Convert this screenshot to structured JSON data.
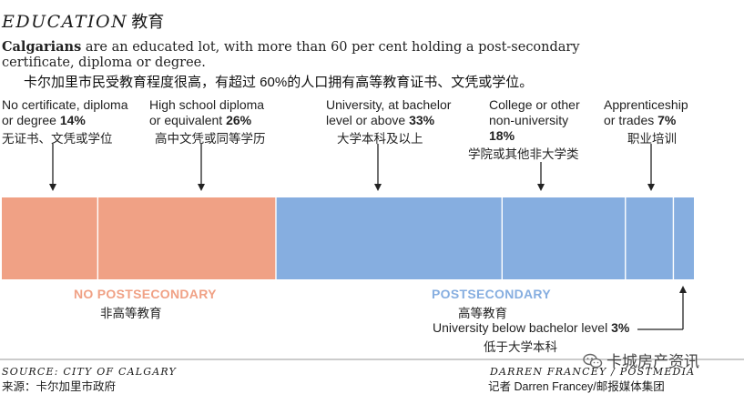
{
  "header": {
    "title": "EDUCATION",
    "title_cn": "教育",
    "subtitle_bold": "Calgarians",
    "subtitle_rest": " are an educated lot, with more than 60 per cent holding a post-secondary certificate, diploma or degree.",
    "subtitle_cn": "卡尔加里市民受教育程度很高，有超过 60%的人口拥有高等教育证书、文凭或学位。"
  },
  "chart_data": {
    "type": "bar",
    "orientation": "horizontal-stacked",
    "unit": "%",
    "categories": [
      {
        "label": "No certificate, diploma or degree",
        "label_lines": [
          "No certificate, diploma",
          "or degree "
        ],
        "value": 14,
        "value_label": "14%",
        "label_cn": "无证书、文凭或学位",
        "group": "no_postsecondary",
        "color": "#f0a185"
      },
      {
        "label": "High school diploma or equivalent",
        "label_lines": [
          "High school diploma",
          "or equivalent "
        ],
        "value": 26,
        "value_label": "26%",
        "label_cn": "高中文凭或同等学历",
        "group": "no_postsecondary",
        "color": "#f0a185"
      },
      {
        "label": "University, at bachelor level or above",
        "label_lines": [
          "University, at bachelor",
          "level or above "
        ],
        "value": 33,
        "value_label": "33%",
        "label_cn": "大学本科及以上",
        "group": "postsecondary",
        "color": "#86aee0"
      },
      {
        "label": "College or other non-university",
        "label_lines": [
          "College or other",
          "non-university",
          ""
        ],
        "value": 18,
        "value_label": "18%",
        "label_cn": "学院或其他非大学类",
        "group": "postsecondary",
        "color": "#86aee0"
      },
      {
        "label": "Apprenticeship or trades",
        "label_lines": [
          "Apprenticeship",
          "or trades "
        ],
        "value": 7,
        "value_label": "7%",
        "label_cn": "职业培训",
        "group": "postsecondary",
        "color": "#86aee0"
      },
      {
        "label": "University below bachelor level",
        "label_lines": [
          "University below bachelor level "
        ],
        "value": 3,
        "value_label": "3%",
        "label_cn": "低于大学本科",
        "group": "postsecondary",
        "color": "#86aee0"
      }
    ],
    "groups": [
      {
        "id": "no_postsecondary",
        "label": "NO POSTSECONDARY",
        "label_cn": "非高等教育",
        "color": "#f0a185"
      },
      {
        "id": "postsecondary",
        "label": "POSTSECONDARY",
        "label_cn": "高等教育",
        "color": "#86aee0"
      }
    ]
  },
  "footer": {
    "source": "SOURCE: CITY OF CALGARY",
    "source_cn": "来源：卡尔加里市政府",
    "credit": "DARREN FRANCEY / POSTMEDIA",
    "credit_cn": "记者 Darren Francey/邮报媒体集团"
  },
  "watermark": {
    "text": "卡城房产资讯",
    "icon": "wechat-icon"
  }
}
